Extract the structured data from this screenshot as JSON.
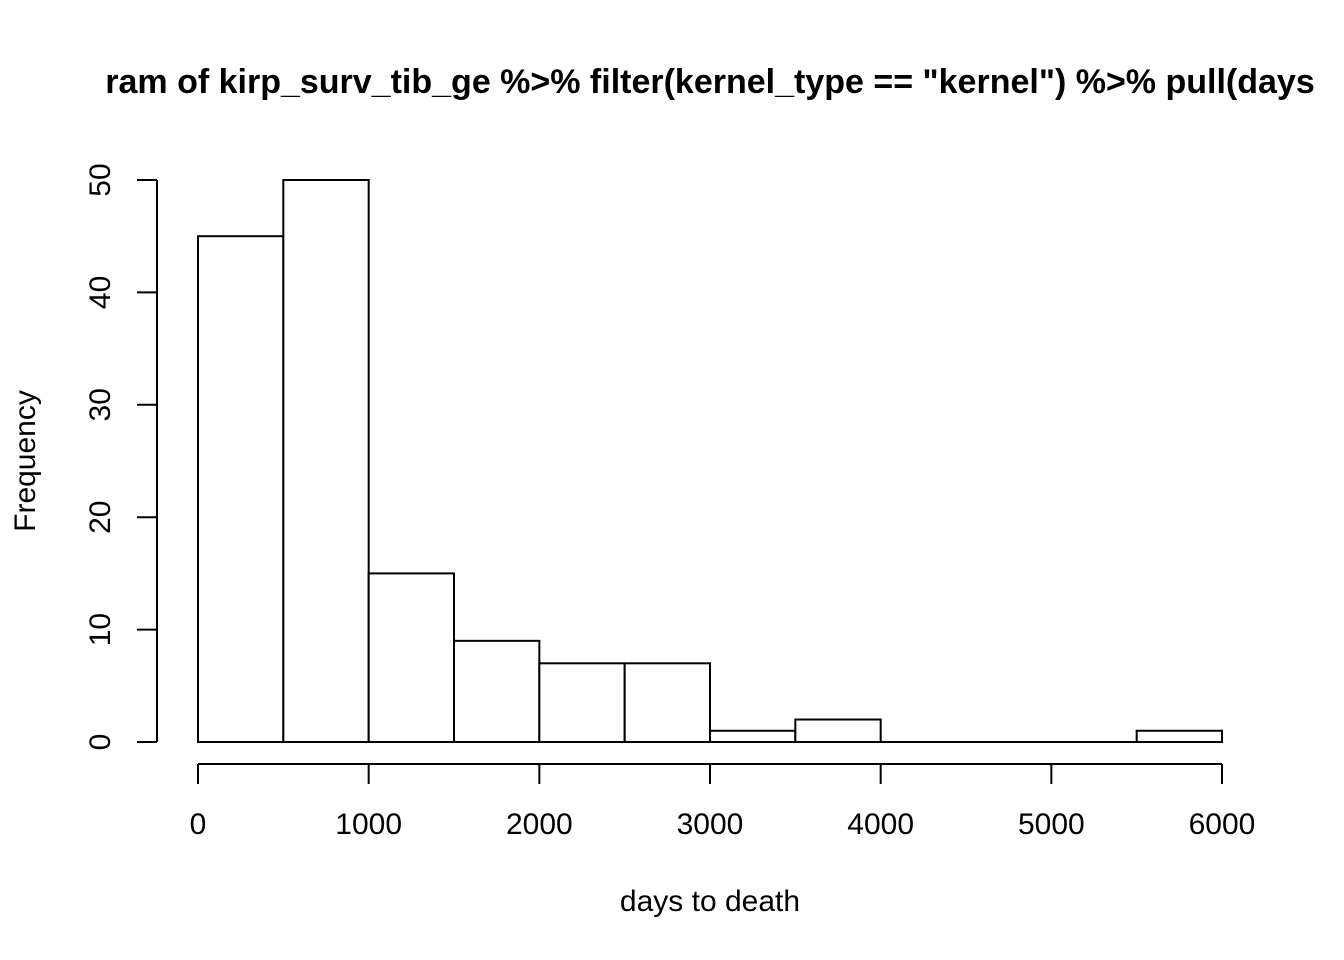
{
  "chart_data": {
    "type": "bar",
    "title": "ram of kirp_surv_tib_ge %>% filter(kernel_type == \"kernel\") %>% pull(days",
    "xlabel": "days to death",
    "ylabel": "Frequency",
    "bins": [
      {
        "x0": 0,
        "x1": 500,
        "count": 45
      },
      {
        "x0": 500,
        "x1": 1000,
        "count": 50
      },
      {
        "x0": 1000,
        "x1": 1500,
        "count": 15
      },
      {
        "x0": 1500,
        "x1": 2000,
        "count": 9
      },
      {
        "x0": 2000,
        "x1": 2500,
        "count": 7
      },
      {
        "x0": 2500,
        "x1": 3000,
        "count": 7
      },
      {
        "x0": 3000,
        "x1": 3500,
        "count": 1
      },
      {
        "x0": 3500,
        "x1": 4000,
        "count": 2
      },
      {
        "x0": 4000,
        "x1": 4500,
        "count": 0
      },
      {
        "x0": 4500,
        "x1": 5000,
        "count": 0
      },
      {
        "x0": 5000,
        "x1": 5500,
        "count": 0
      },
      {
        "x0": 5500,
        "x1": 6000,
        "count": 1
      }
    ],
    "x_ticks": [
      "0",
      "1000",
      "2000",
      "3000",
      "4000",
      "5000",
      "6000"
    ],
    "y_ticks": [
      "0",
      "10",
      "20",
      "30",
      "40",
      "50"
    ],
    "xlim": [
      0,
      6000
    ],
    "ylim": [
      0,
      50
    ],
    "grid": false,
    "legend": "none",
    "bar_fill": "#ffffff",
    "bar_stroke": "#000000"
  }
}
